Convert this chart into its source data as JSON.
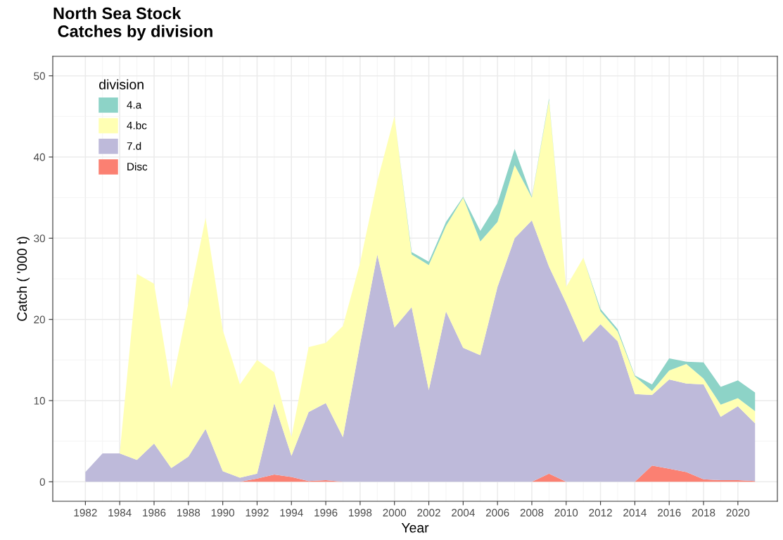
{
  "chart_data": {
    "type": "area",
    "stacked": true,
    "title": "North Sea Stock\n Catches by division",
    "xlabel": "Year",
    "ylabel": "Catch ( '000 t)",
    "legend_title": "division",
    "legend": "top left",
    "grid": true,
    "x": [
      1982,
      1983,
      1984,
      1985,
      1986,
      1987,
      1988,
      1989,
      1990,
      1991,
      1992,
      1993,
      1994,
      1995,
      1996,
      1997,
      1998,
      1999,
      2000,
      2001,
      2002,
      2003,
      2004,
      2005,
      2006,
      2007,
      2008,
      2009,
      2010,
      2011,
      2012,
      2013,
      2014,
      2015,
      2016,
      2017,
      2018,
      2019,
      2020,
      2021
    ],
    "xlim": [
      1980.1,
      2022.3
    ],
    "xticks": [
      1982,
      1984,
      1986,
      1988,
      1990,
      1992,
      1994,
      1996,
      1998,
      2000,
      2002,
      2004,
      2006,
      2008,
      2010,
      2012,
      2014,
      2016,
      2018,
      2020
    ],
    "ylim": [
      -2.4,
      52.4
    ],
    "yticks": [
      0,
      10,
      20,
      30,
      40,
      50
    ],
    "series": [
      {
        "name": "Disc",
        "color": "#fb8072",
        "values": [
          0,
          0,
          0,
          0,
          0,
          0,
          0,
          0,
          0,
          0,
          0.4,
          0.9,
          0.6,
          0.1,
          0.2,
          0,
          0,
          0,
          0,
          0,
          0,
          0,
          0,
          0,
          0,
          0,
          0,
          1.0,
          0,
          0,
          0,
          0,
          0,
          2.0,
          1.6,
          1.2,
          0.3,
          0.2,
          0.2,
          0.1
        ]
      },
      {
        "name": "7.d",
        "color": "#bebada",
        "values": [
          1.2,
          3.5,
          3.5,
          2.7,
          4.7,
          1.7,
          3.1,
          6.5,
          1.3,
          0.5,
          0.6,
          8.8,
          2.6,
          8.5,
          9.5,
          5.5,
          17,
          28,
          19,
          21.5,
          11.3,
          21,
          16.5,
          15.6,
          24,
          30,
          32.2,
          25.5,
          22,
          17.2,
          19.4,
          17.3,
          10.8,
          8.7,
          11.0,
          10.9,
          11.7,
          7.8,
          9.1,
          7.1
        ]
      },
      {
        "name": "4.bc",
        "color": "#ffffb3",
        "values": [
          0,
          0,
          0,
          22.9,
          19.7,
          9.8,
          18.9,
          26.0,
          17.4,
          11.5,
          14.0,
          3.8,
          2.3,
          8.0,
          7.4,
          13.7,
          10,
          9,
          26,
          6.5,
          15.4,
          10.5,
          18.5,
          14.0,
          8,
          9,
          2.8,
          20.5,
          2,
          10.4,
          1.6,
          1.2,
          2.2,
          0.5,
          1.1,
          2.4,
          0.7,
          1.5,
          1.0,
          1.5
        ]
      },
      {
        "name": "4.a",
        "color": "#8dd3c7",
        "values": [
          0,
          0,
          0,
          0,
          0,
          0,
          0,
          0,
          0,
          0,
          0,
          0,
          0,
          0,
          0,
          0,
          0,
          0,
          0,
          0.3,
          0.4,
          0.5,
          0.1,
          1.3,
          2.3,
          2,
          0.1,
          0.2,
          0,
          0,
          0.3,
          0.3,
          0.1,
          0.8,
          1.5,
          0.3,
          2.0,
          2.2,
          2.2,
          2.3
        ]
      }
    ]
  }
}
